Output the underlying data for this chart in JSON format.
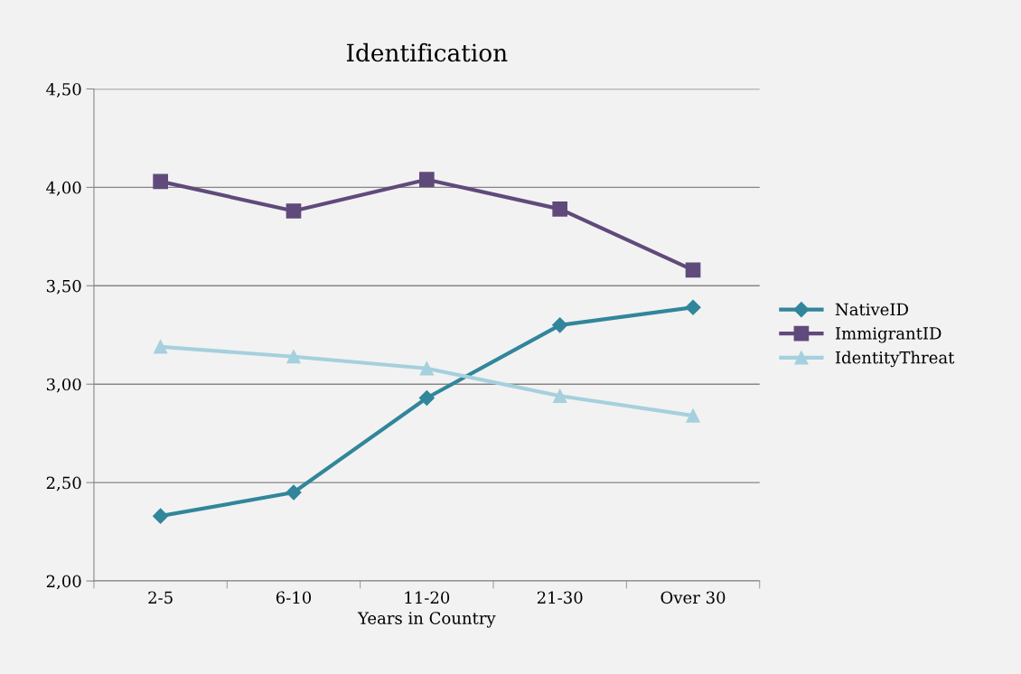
{
  "chart_data": {
    "type": "line",
    "title": "Identification",
    "xlabel": "Years in Country",
    "categories": [
      "2-5",
      "6-10",
      "11-20",
      "21-30",
      "Over 30"
    ],
    "series": [
      {
        "name": "NativeID",
        "color": "#31869b",
        "marker": "diamond",
        "values": [
          2.33,
          2.45,
          2.93,
          3.3,
          3.39
        ]
      },
      {
        "name": "ImmigrantID",
        "color": "#604a7b",
        "marker": "square",
        "values": [
          4.03,
          3.88,
          4.04,
          3.89,
          3.58
        ]
      },
      {
        "name": "IdentityThreat",
        "color": "#a5d0dd",
        "marker": "triangle",
        "values": [
          3.19,
          3.14,
          3.08,
          2.94,
          2.84
        ]
      }
    ],
    "ylim": [
      2.0,
      4.5
    ],
    "yticks": [
      {
        "value": 2.0,
        "label": "2,00"
      },
      {
        "value": 2.5,
        "label": "2,50"
      },
      {
        "value": 3.0,
        "label": "3,00"
      },
      {
        "value": 3.5,
        "label": "3,50"
      },
      {
        "value": 4.0,
        "label": "4,00"
      },
      {
        "value": 4.5,
        "label": "4,50"
      }
    ],
    "grid": "y",
    "legend": "right",
    "line_style": "solid"
  }
}
